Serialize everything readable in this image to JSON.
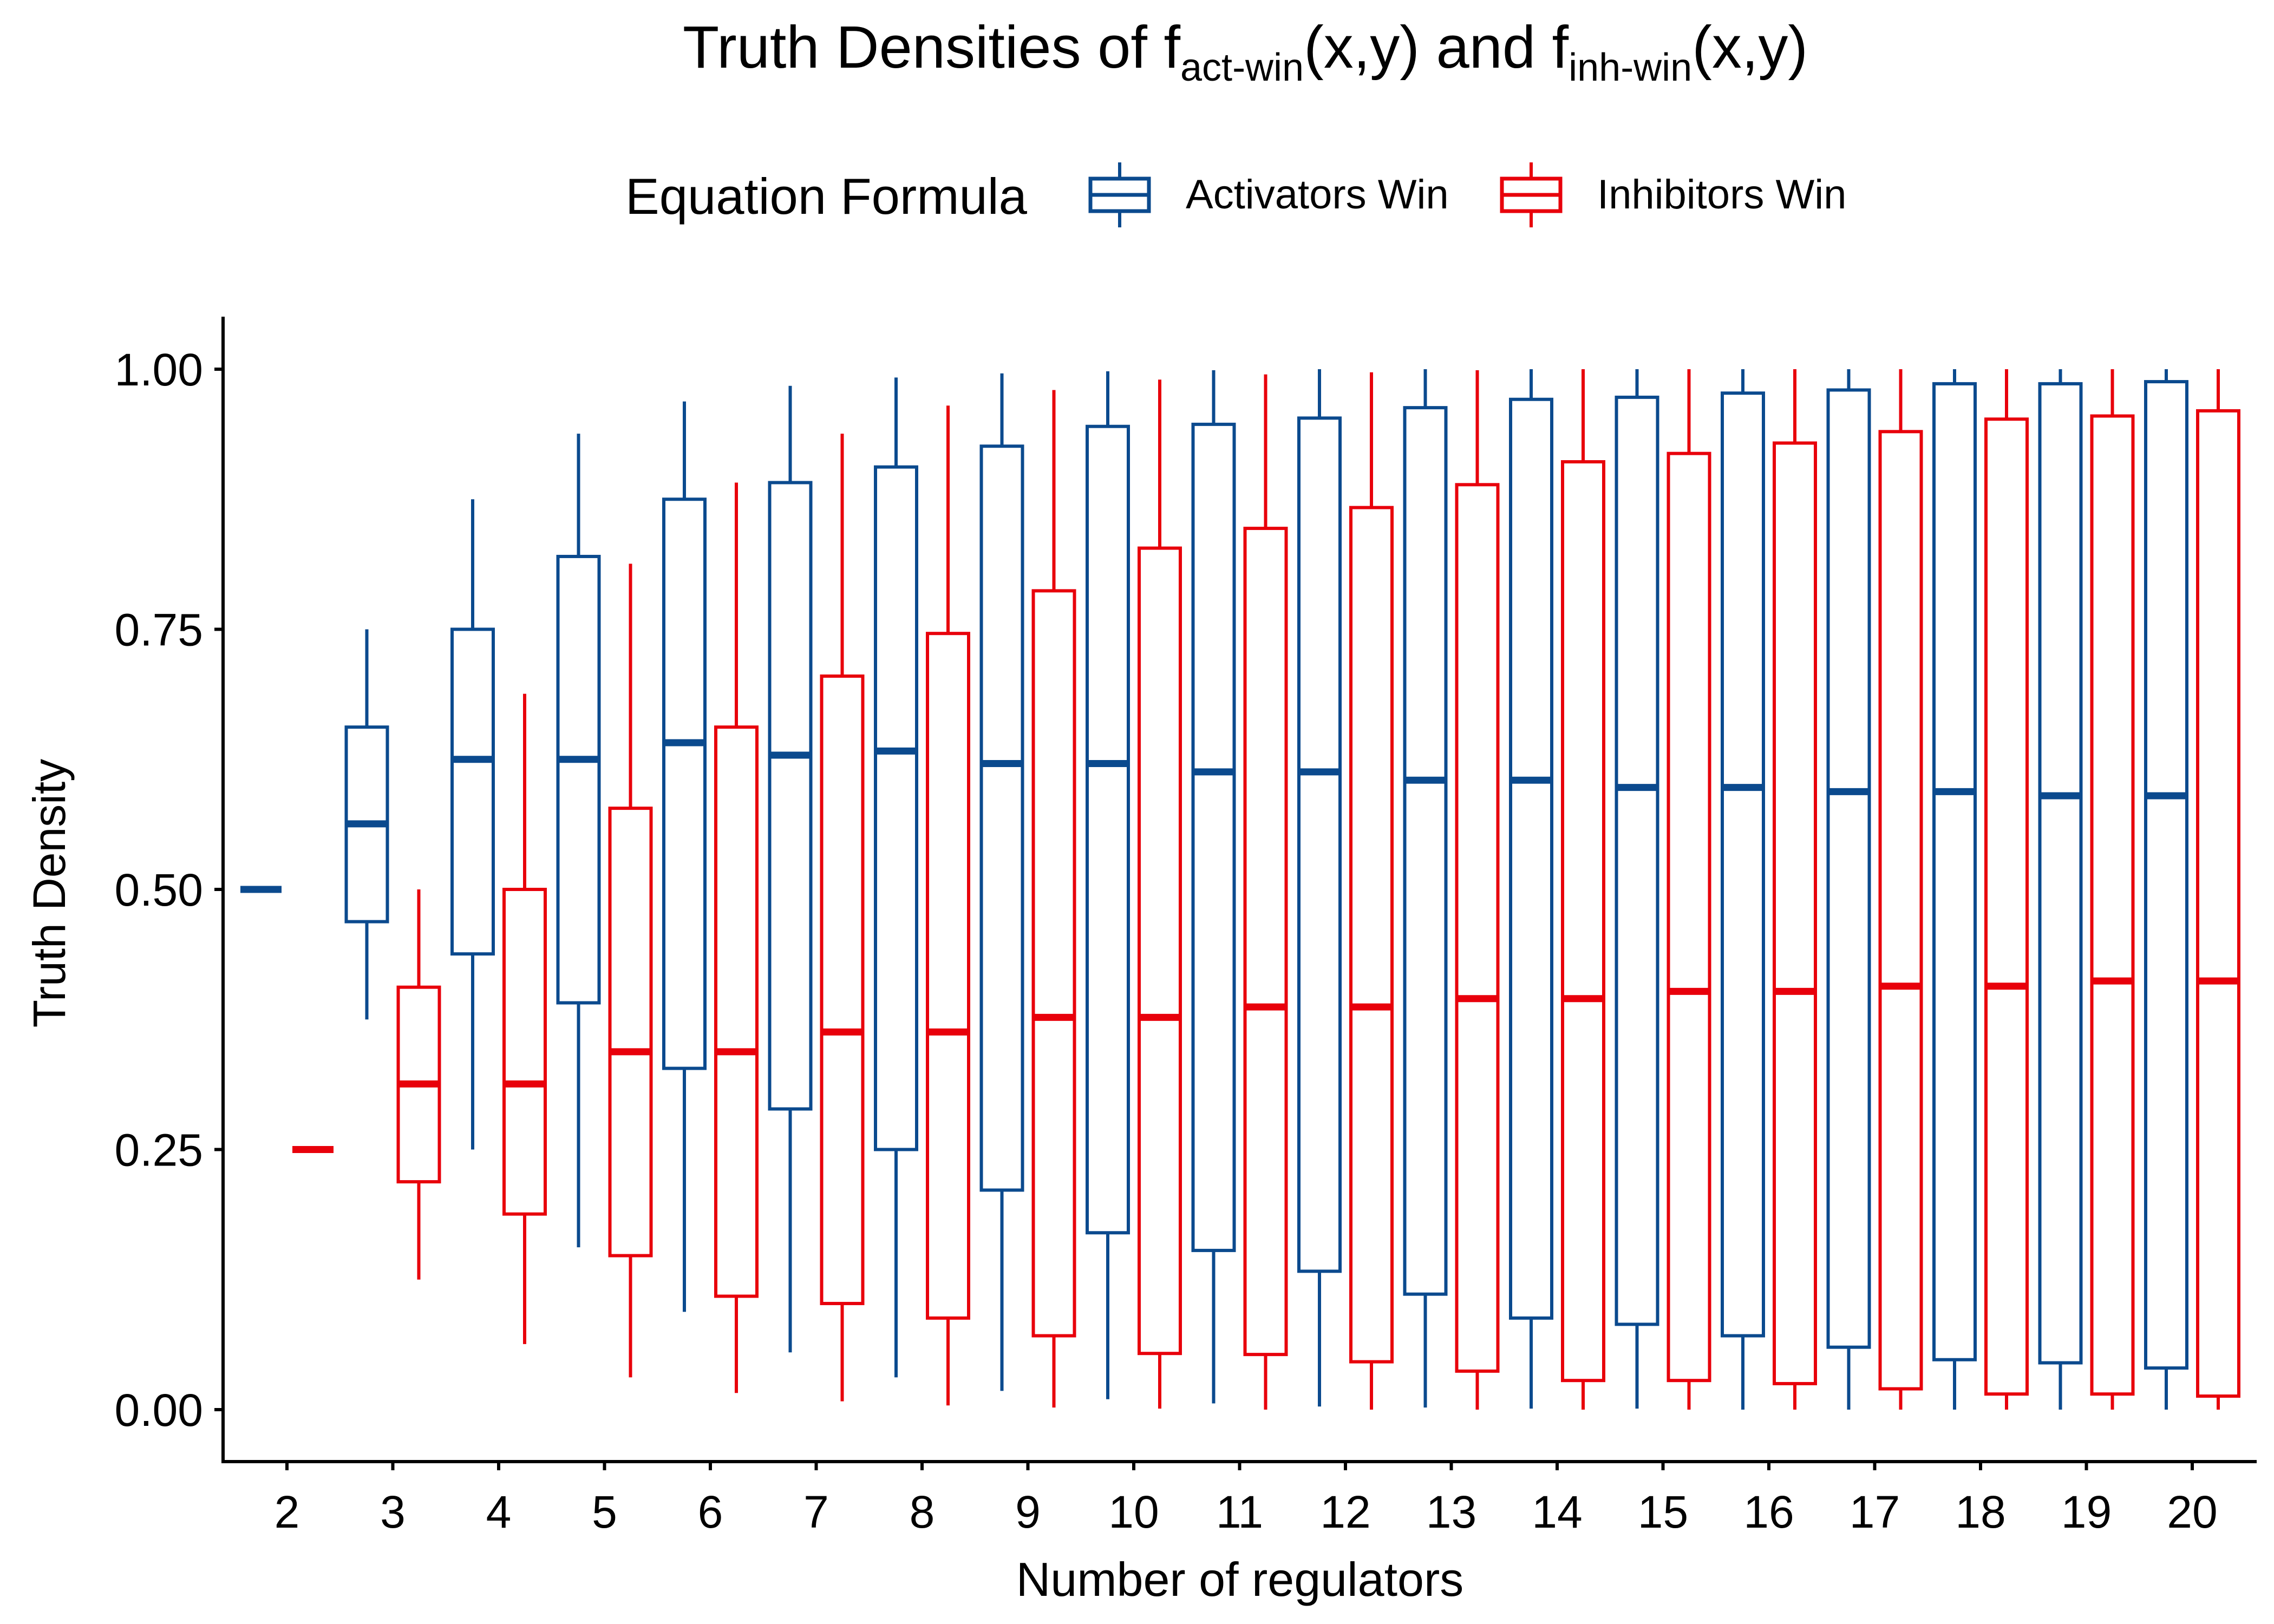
{
  "chart_data": {
    "type": "boxplot",
    "title": {
      "prefix": "Truth Densities of f",
      "sub1": "act-win",
      "mid": "(x,y) and f",
      "sub2": "inh-win",
      "suffix": "(x,y)"
    },
    "xlabel": "Number of regulators",
    "ylabel": "Truth Density",
    "ylim": [
      0,
      1
    ],
    "yticks": [
      "0.00",
      "0.25",
      "0.50",
      "0.75",
      "1.00"
    ],
    "ytick_values": [
      0,
      0.25,
      0.5,
      0.75,
      1.0
    ],
    "categories": [
      "2",
      "3",
      "4",
      "5",
      "6",
      "7",
      "8",
      "9",
      "10",
      "11",
      "12",
      "13",
      "14",
      "15",
      "16",
      "17",
      "18",
      "19",
      "20"
    ],
    "legend": {
      "title": "Equation Formula",
      "position": "top"
    },
    "grid": false,
    "series": [
      {
        "name": "Activators Win",
        "color": "#0B4A8E",
        "boxes": [
          {
            "min": 0.5,
            "q1": 0.5,
            "median": 0.5,
            "q3": 0.5,
            "max": 0.5
          },
          {
            "min": 0.375,
            "q1": 0.469,
            "median": 0.563,
            "q3": 0.656,
            "max": 0.75
          },
          {
            "min": 0.25,
            "q1": 0.438,
            "median": 0.625,
            "q3": 0.75,
            "max": 0.875
          },
          {
            "min": 0.156,
            "q1": 0.391,
            "median": 0.625,
            "q3": 0.82,
            "max": 0.938
          },
          {
            "min": 0.094,
            "q1": 0.328,
            "median": 0.641,
            "q3": 0.875,
            "max": 0.969
          },
          {
            "min": 0.055,
            "q1": 0.289,
            "median": 0.629,
            "q3": 0.891,
            "max": 0.984
          },
          {
            "min": 0.031,
            "q1": 0.25,
            "median": 0.633,
            "q3": 0.906,
            "max": 0.992
          },
          {
            "min": 0.018,
            "q1": 0.211,
            "median": 0.621,
            "q3": 0.926,
            "max": 0.996
          },
          {
            "min": 0.01,
            "q1": 0.17,
            "median": 0.621,
            "q3": 0.945,
            "max": 0.998
          },
          {
            "min": 0.006,
            "q1": 0.153,
            "median": 0.613,
            "q3": 0.947,
            "max": 0.999
          },
          {
            "min": 0.003,
            "q1": 0.133,
            "median": 0.613,
            "q3": 0.953,
            "max": 1.0
          },
          {
            "min": 0.002,
            "q1": 0.111,
            "median": 0.605,
            "q3": 0.963,
            "max": 1.0
          },
          {
            "min": 0.001,
            "q1": 0.088,
            "median": 0.605,
            "q3": 0.971,
            "max": 1.0
          },
          {
            "min": 0.001,
            "q1": 0.082,
            "median": 0.598,
            "q3": 0.973,
            "max": 1.0
          },
          {
            "min": 0.0,
            "q1": 0.071,
            "median": 0.598,
            "q3": 0.977,
            "max": 1.0
          },
          {
            "min": 0.0,
            "q1": 0.06,
            "median": 0.594,
            "q3": 0.98,
            "max": 1.0
          },
          {
            "min": 0.0,
            "q1": 0.048,
            "median": 0.594,
            "q3": 0.986,
            "max": 1.0
          },
          {
            "min": 0.0,
            "q1": 0.045,
            "median": 0.59,
            "q3": 0.986,
            "max": 1.0
          },
          {
            "min": 0.0,
            "q1": 0.04,
            "median": 0.59,
            "q3": 0.988,
            "max": 1.0
          }
        ]
      },
      {
        "name": "Inhibitors Win",
        "color": "#E8000B",
        "boxes": [
          {
            "min": 0.25,
            "q1": 0.25,
            "median": 0.25,
            "q3": 0.25,
            "max": 0.25
          },
          {
            "min": 0.125,
            "q1": 0.219,
            "median": 0.313,
            "q3": 0.406,
            "max": 0.5
          },
          {
            "min": 0.063,
            "q1": 0.188,
            "median": 0.313,
            "q3": 0.5,
            "max": 0.688
          },
          {
            "min": 0.031,
            "q1": 0.148,
            "median": 0.344,
            "q3": 0.578,
            "max": 0.813
          },
          {
            "min": 0.016,
            "q1": 0.109,
            "median": 0.344,
            "q3": 0.656,
            "max": 0.891
          },
          {
            "min": 0.008,
            "q1": 0.102,
            "median": 0.363,
            "q3": 0.705,
            "max": 0.938
          },
          {
            "min": 0.004,
            "q1": 0.088,
            "median": 0.363,
            "q3": 0.746,
            "max": 0.965
          },
          {
            "min": 0.002,
            "q1": 0.071,
            "median": 0.377,
            "q3": 0.787,
            "max": 0.98
          },
          {
            "min": 0.001,
            "q1": 0.054,
            "median": 0.377,
            "q3": 0.828,
            "max": 0.99
          },
          {
            "min": 0.0,
            "q1": 0.053,
            "median": 0.387,
            "q3": 0.847,
            "max": 0.995
          },
          {
            "min": 0.0,
            "q1": 0.046,
            "median": 0.387,
            "q3": 0.867,
            "max": 0.997
          },
          {
            "min": 0.0,
            "q1": 0.037,
            "median": 0.395,
            "q3": 0.889,
            "max": 0.999
          },
          {
            "min": 0.0,
            "q1": 0.028,
            "median": 0.395,
            "q3": 0.911,
            "max": 1.0
          },
          {
            "min": 0.0,
            "q1": 0.028,
            "median": 0.402,
            "q3": 0.919,
            "max": 1.0
          },
          {
            "min": 0.0,
            "q1": 0.025,
            "median": 0.402,
            "q3": 0.929,
            "max": 1.0
          },
          {
            "min": 0.0,
            "q1": 0.02,
            "median": 0.407,
            "q3": 0.94,
            "max": 1.0
          },
          {
            "min": 0.0,
            "q1": 0.015,
            "median": 0.407,
            "q3": 0.952,
            "max": 1.0
          },
          {
            "min": 0.0,
            "q1": 0.015,
            "median": 0.412,
            "q3": 0.955,
            "max": 1.0
          },
          {
            "min": 0.0,
            "q1": 0.013,
            "median": 0.412,
            "q3": 0.96,
            "max": 1.0
          }
        ]
      }
    ]
  }
}
